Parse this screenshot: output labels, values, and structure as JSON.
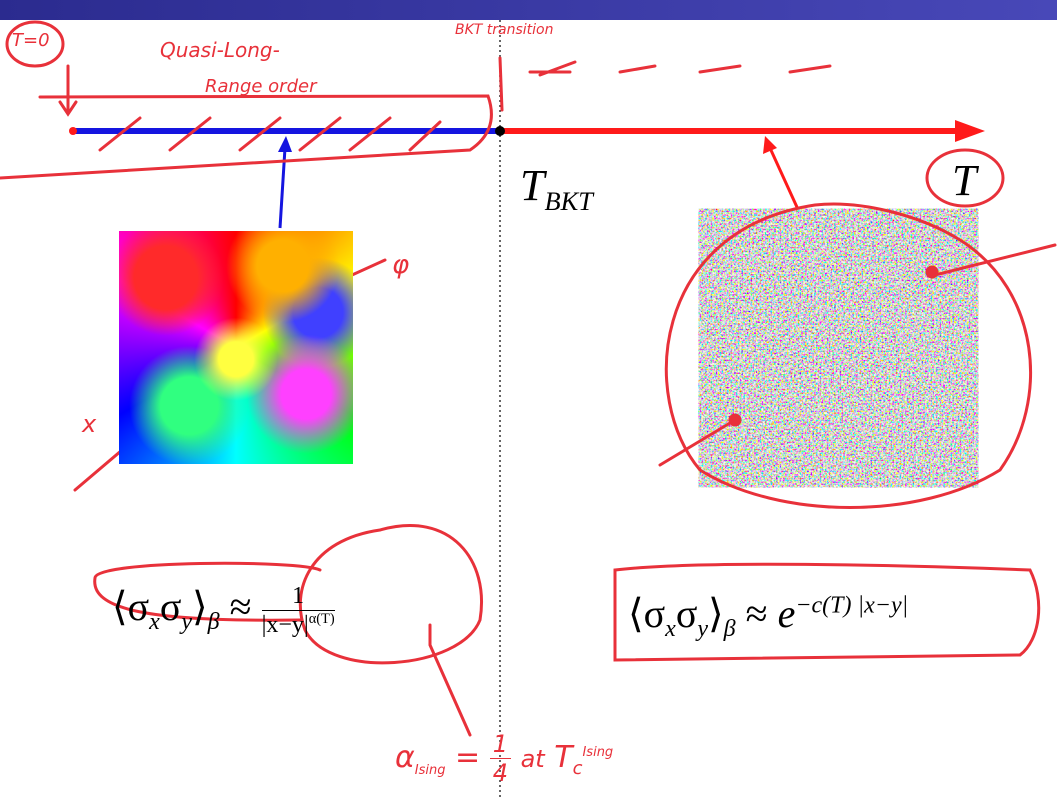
{
  "axis": {
    "label": "T",
    "critical_symbol": "T",
    "critical_subscript": "BKT"
  },
  "annotations": {
    "t_zero": "T=0",
    "phase_left_1": "Quasi-Long-",
    "phase_left_2": "Range order",
    "transition": "BKT transition",
    "phi": "φ",
    "x": "x",
    "ising": {
      "alpha": "α",
      "alpha_sub": "Ising",
      "equals": "=",
      "num": "1",
      "den": "4",
      "at": "at",
      "tc": "T",
      "tc_sub": "c",
      "tc_sup": "Ising"
    }
  },
  "formulas": {
    "left": {
      "open": "⟨σ",
      "sub_x": "x",
      "sigma": "σ",
      "sub_y": "y",
      "close": "⟩",
      "sub_beta": "β",
      "approx": "≈",
      "num": "1",
      "den": "|x−y|",
      "den_sup": "α(T)"
    },
    "right": {
      "open": "⟨σ",
      "sub_x": "x",
      "sigma": "σ",
      "sub_y": "y",
      "close": "⟩",
      "sub_beta": "β",
      "approx": "≈",
      "base": "e",
      "sup": "−c(T) |x−y|"
    }
  }
}
